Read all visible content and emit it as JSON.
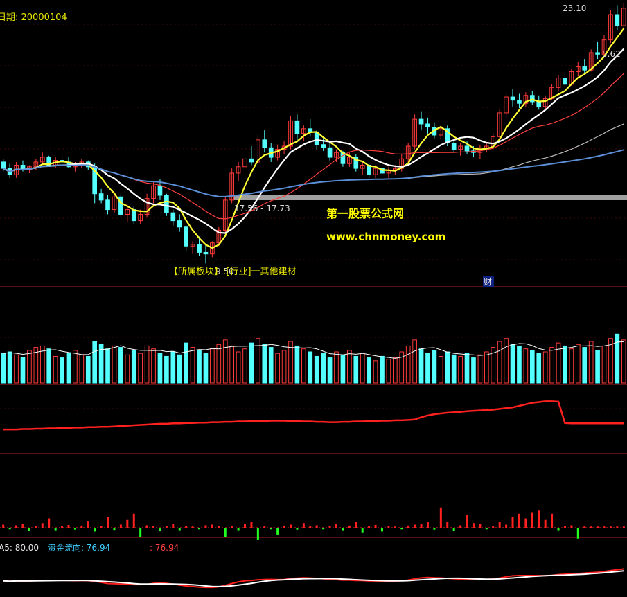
{
  "header": {
    "date_label": "日期: 20000104",
    "top_price": "23.10",
    "right_price": "5.62"
  },
  "price_panel": {
    "range_label": "17.56 - 17.73",
    "sector_label": "【所属板块】:[行业]一其他建材",
    "overlay_low": "9.50",
    "cai_badge": "财"
  },
  "watermark": {
    "line1": "第一股票公式网",
    "line2": "www.chnmoney.com"
  },
  "indicator_panel": {
    "a5_label": "A5: 80.00",
    "flow_label": "资金流向: 76.94",
    "flow_value": ": 76.94"
  },
  "colors": {
    "background": "#000000",
    "up_candle": "#ff3b3b",
    "down_candle": "#54ffff",
    "ma5": "#ffff33",
    "ma10": "#ffffff",
    "ma20": "#ff4040",
    "ma_long": "#5b8ed6",
    "divider": "#b01e1e",
    "gray_band": "#a0a0a0"
  },
  "chart_data": [
    {
      "type": "candlestick",
      "title": "",
      "annotations": [
        "17.56 - 17.73",
        "23.10",
        "5.62",
        "9.50"
      ],
      "ohlc": [
        [
          19.6,
          19.8,
          19.0,
          19.2
        ],
        [
          19.2,
          19.5,
          18.6,
          18.8
        ],
        [
          18.8,
          19.6,
          18.6,
          19.4
        ],
        [
          19.4,
          19.7,
          19.0,
          19.1
        ],
        [
          19.1,
          19.4,
          18.9,
          19.3
        ],
        [
          19.3,
          19.8,
          19.1,
          19.6
        ],
        [
          19.6,
          20.2,
          19.4,
          19.9
        ],
        [
          19.9,
          20.0,
          19.3,
          19.4
        ],
        [
          19.4,
          19.9,
          19.2,
          19.7
        ],
        [
          19.7,
          20.0,
          19.5,
          19.6
        ],
        [
          19.6,
          19.9,
          19.2,
          19.3
        ],
        [
          19.3,
          19.6,
          19.0,
          19.4
        ],
        [
          19.4,
          19.8,
          19.2,
          19.6
        ],
        [
          19.6,
          19.7,
          19.1,
          19.3
        ],
        [
          19.3,
          19.5,
          17.0,
          17.6
        ],
        [
          17.6,
          17.9,
          17.0,
          17.2
        ],
        [
          17.2,
          17.5,
          16.3,
          16.6
        ],
        [
          16.6,
          17.7,
          16.4,
          17.4
        ],
        [
          17.4,
          17.6,
          16.1,
          16.3
        ],
        [
          16.3,
          16.9,
          15.8,
          16.6
        ],
        [
          16.6,
          16.8,
          15.7,
          15.9
        ],
        [
          15.9,
          16.6,
          15.7,
          16.3
        ],
        [
          16.3,
          17.6,
          16.1,
          17.3
        ],
        [
          17.3,
          18.4,
          17.0,
          18.1
        ],
        [
          18.1,
          18.5,
          17.2,
          17.5
        ],
        [
          17.5,
          17.6,
          16.2,
          16.4
        ],
        [
          16.4,
          16.6,
          15.6,
          15.9
        ],
        [
          15.9,
          16.3,
          15.2,
          15.5
        ],
        [
          15.5,
          15.6,
          14.0,
          14.3
        ],
        [
          14.3,
          14.6,
          13.8,
          14.4
        ],
        [
          14.4,
          14.9,
          13.7,
          13.9
        ],
        [
          13.9,
          14.4,
          13.2,
          13.8
        ],
        [
          13.8,
          14.6,
          13.6,
          14.5
        ],
        [
          14.5,
          15.5,
          14.3,
          15.3
        ],
        [
          15.3,
          17.4,
          15.1,
          17.2
        ],
        [
          17.2,
          19.2,
          17.0,
          18.9
        ],
        [
          18.9,
          19.6,
          18.4,
          19.3
        ],
        [
          19.3,
          20.1,
          19.0,
          19.8
        ],
        [
          19.8,
          20.6,
          19.4,
          19.6
        ],
        [
          19.6,
          21.3,
          19.4,
          21.0
        ],
        [
          21.0,
          21.6,
          20.2,
          20.5
        ],
        [
          20.5,
          20.8,
          19.6,
          19.9
        ],
        [
          19.9,
          20.7,
          19.7,
          20.4
        ],
        [
          20.4,
          20.9,
          20.1,
          20.6
        ],
        [
          20.6,
          22.5,
          20.4,
          22.2
        ],
        [
          22.2,
          22.6,
          21.0,
          21.4
        ],
        [
          21.4,
          21.9,
          20.9,
          21.7
        ],
        [
          21.7,
          22.3,
          21.2,
          21.5
        ],
        [
          21.5,
          21.6,
          20.4,
          20.7
        ],
        [
          20.7,
          21.1,
          20.3,
          20.5
        ],
        [
          20.5,
          20.8,
          19.7,
          19.9
        ],
        [
          19.9,
          20.4,
          19.6,
          20.2
        ],
        [
          20.2,
          20.3,
          19.3,
          19.5
        ],
        [
          19.5,
          20.2,
          19.3,
          19.9
        ],
        [
          19.9,
          20.1,
          19.0,
          19.2
        ],
        [
          19.2,
          19.6,
          18.8,
          19.4
        ],
        [
          19.4,
          19.5,
          18.6,
          18.8
        ],
        [
          18.8,
          19.4,
          18.6,
          19.2
        ],
        [
          19.2,
          19.4,
          18.7,
          18.9
        ],
        [
          18.9,
          19.3,
          18.6,
          19.1
        ],
        [
          19.1,
          19.4,
          18.8,
          19.2
        ],
        [
          19.2,
          20.1,
          19.0,
          19.8
        ],
        [
          19.8,
          20.8,
          19.6,
          20.6
        ],
        [
          20.6,
          22.6,
          20.4,
          22.3
        ],
        [
          22.3,
          22.8,
          21.6,
          22.0
        ],
        [
          22.0,
          22.4,
          21.4,
          21.8
        ],
        [
          21.8,
          22.1,
          21.1,
          21.3
        ],
        [
          21.3,
          21.9,
          21.0,
          21.7
        ],
        [
          21.7,
          21.9,
          20.6,
          20.8
        ],
        [
          20.8,
          21.0,
          20.2,
          20.4
        ],
        [
          20.4,
          20.8,
          20.0,
          20.6
        ],
        [
          20.6,
          20.9,
          20.1,
          20.3
        ],
        [
          20.3,
          20.6,
          19.9,
          20.2
        ],
        [
          20.2,
          20.7,
          19.8,
          20.5
        ],
        [
          20.5,
          20.8,
          20.2,
          20.6
        ],
        [
          20.6,
          21.4,
          20.4,
          21.2
        ],
        [
          21.2,
          22.9,
          21.0,
          22.7
        ],
        [
          22.7,
          24.0,
          22.4,
          23.7
        ],
        [
          23.7,
          24.2,
          23.1,
          23.5
        ],
        [
          23.5,
          23.9,
          23.0,
          23.3
        ],
        [
          23.3,
          24.0,
          23.1,
          23.8
        ],
        [
          23.8,
          24.1,
          23.2,
          23.4
        ],
        [
          23.4,
          23.8,
          22.9,
          23.1
        ],
        [
          23.1,
          23.8,
          22.9,
          23.6
        ],
        [
          23.6,
          24.5,
          23.5,
          24.3
        ],
        [
          24.3,
          25.1,
          24.1,
          24.9
        ],
        [
          24.9,
          25.2,
          24.3,
          24.5
        ],
        [
          24.5,
          25.5,
          24.4,
          25.3
        ],
        [
          25.3,
          25.9,
          25.0,
          25.6
        ],
        [
          25.6,
          26.1,
          25.2,
          25.4
        ],
        [
          25.4,
          26.7,
          25.3,
          26.5
        ],
        [
          26.5,
          27.2,
          26.1,
          26.4
        ],
        [
          26.4,
          27.6,
          26.3,
          27.3
        ],
        [
          27.3,
          29.2,
          27.1,
          28.9
        ],
        [
          28.9,
          29.5,
          27.9,
          28.2
        ],
        [
          28.2,
          29.6,
          28.0,
          29.3
        ]
      ],
      "volume": [
        40,
        42,
        38,
        35,
        44,
        48,
        50,
        46,
        36,
        34,
        40,
        44,
        38,
        36,
        56,
        52,
        46,
        50,
        48,
        38,
        44,
        40,
        50,
        46,
        40,
        36,
        42,
        38,
        54,
        48,
        44,
        40,
        46,
        52,
        58,
        50,
        42,
        46,
        54,
        60,
        52,
        48,
        40,
        44,
        56,
        50,
        46,
        42,
        36,
        40,
        34,
        42,
        38,
        44,
        36,
        40,
        34,
        30,
        36,
        32,
        34,
        42,
        50,
        58,
        46,
        40,
        44,
        36,
        42,
        38,
        36,
        40,
        34,
        38,
        42,
        48,
        56,
        60,
        52,
        50,
        46,
        44,
        40,
        42,
        48,
        54,
        50,
        46,
        52,
        48,
        56,
        44,
        50,
        60,
        66,
        58
      ],
      "red_line": [
        0.18,
        0.18,
        0.18,
        0.19,
        0.19,
        0.2,
        0.2,
        0.21,
        0.21,
        0.22,
        0.22,
        0.23,
        0.23,
        0.24,
        0.24,
        0.25,
        0.25,
        0.26,
        0.27,
        0.28,
        0.29,
        0.3,
        0.31,
        0.32,
        0.33,
        0.33,
        0.34,
        0.34,
        0.35,
        0.35,
        0.36,
        0.36,
        0.37,
        0.37,
        0.38,
        0.38,
        0.39,
        0.39,
        0.4,
        0.4,
        0.4,
        0.41,
        0.41,
        0.41,
        0.4,
        0.4,
        0.39,
        0.39,
        0.38,
        0.38,
        0.37,
        0.37,
        0.38,
        0.38,
        0.39,
        0.39,
        0.4,
        0.4,
        0.41,
        0.41,
        0.42,
        0.42,
        0.43,
        0.44,
        0.5,
        0.55,
        0.58,
        0.6,
        0.62,
        0.63,
        0.64,
        0.66,
        0.67,
        0.68,
        0.69,
        0.7,
        0.72,
        0.74,
        0.76,
        0.8,
        0.84,
        0.88,
        0.9,
        0.92,
        0.92,
        0.91,
        0.35,
        0.34,
        0.34,
        0.34,
        0.34,
        0.34,
        0.34,
        0.34,
        0.34,
        0.34
      ],
      "flow_bars": [
        0.1,
        -0.05,
        0.08,
        0.12,
        -0.1,
        0.06,
        0.15,
        0.3,
        -0.08,
        0.05,
        0.09,
        -0.06,
        0.07,
        0.22,
        -0.12,
        0.05,
        0.35,
        -0.07,
        0.1,
        0.25,
        0.45,
        -0.3,
        0.08,
        0.06,
        -0.1,
        0.05,
        0.12,
        -0.08,
        0.06,
        0.04,
        -0.05,
        0.08,
        0.1,
        0.06,
        -0.3,
        0.05,
        -0.08,
        0.12,
        0.18,
        -0.4,
        0.06,
        -0.05,
        -0.22,
        0.07,
        0.1,
        -0.06,
        0.15,
        0.05,
        0.08,
        -0.05,
        0.06,
        0.12,
        -0.08,
        0.07,
        0.2,
        -0.15,
        0.05,
        0.09,
        -0.12,
        0.06,
        0.04,
        -0.05,
        0.07,
        0.1,
        0.12,
        0.18,
        -0.06,
        0.65,
        0.2,
        -0.1,
        0.08,
        0.4,
        0.15,
        0.12,
        -0.05,
        0.06,
        0.18,
        0.1,
        0.35,
        0.45,
        0.3,
        0.5,
        0.55,
        0.25,
        0.45,
        -0.08,
        0.05,
        0.08,
        -0.35,
        0.04,
        0.04,
        0.04,
        0.04,
        0.04,
        0.04,
        0.04
      ]
    }
  ]
}
